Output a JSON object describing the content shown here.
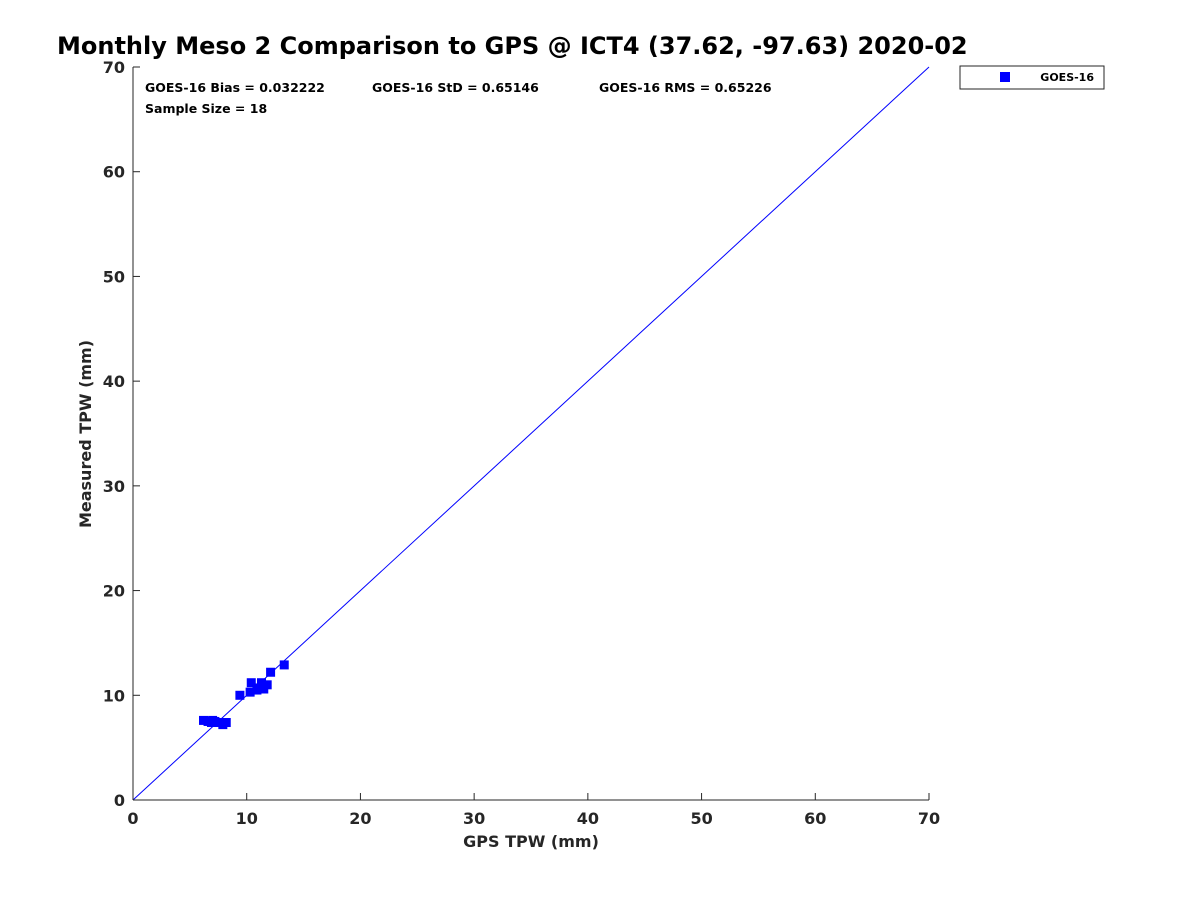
{
  "chart_data": {
    "type": "scatter",
    "title": "Monthly Meso 2 Comparison to GPS @ ICT4 (37.62, -97.63) 2020-02",
    "xlabel": "GPS TPW (mm)",
    "ylabel": "Measured TPW (mm)",
    "xlim": [
      0,
      70
    ],
    "ylim": [
      0,
      70
    ],
    "x_ticks": [
      "0",
      "10",
      "20",
      "30",
      "40",
      "50",
      "60",
      "70"
    ],
    "y_ticks": [
      "0",
      "10",
      "20",
      "30",
      "40",
      "50",
      "60",
      "70"
    ],
    "grid": false,
    "legend_position": "outside-top-right",
    "reference_line": {
      "from": [
        0,
        0
      ],
      "to": [
        70,
        70
      ],
      "color": "#0000ff"
    },
    "annotations": {
      "bias": "GOES-16 Bias = 0.032222",
      "std": "GOES-16 StD = 0.65146",
      "rms": "GOES-16 RMS = 0.65226",
      "sample": "Sample Size = 18"
    },
    "series": [
      {
        "name": "GOES-16",
        "color": "#0000ff",
        "marker": "square",
        "points": [
          [
            6.2,
            7.6
          ],
          [
            6.6,
            7.5
          ],
          [
            6.9,
            7.4
          ],
          [
            7.2,
            7.5
          ],
          [
            7.6,
            7.4
          ],
          [
            7.9,
            7.2
          ],
          [
            8.2,
            7.4
          ],
          [
            9.4,
            10.0
          ],
          [
            10.3,
            10.3
          ],
          [
            10.4,
            11.2
          ],
          [
            10.9,
            10.5
          ],
          [
            11.1,
            10.7
          ],
          [
            11.3,
            11.2
          ],
          [
            11.5,
            10.6
          ],
          [
            11.8,
            11.0
          ],
          [
            12.1,
            12.2
          ],
          [
            13.3,
            12.9
          ],
          [
            7.0,
            7.6
          ]
        ]
      }
    ]
  }
}
